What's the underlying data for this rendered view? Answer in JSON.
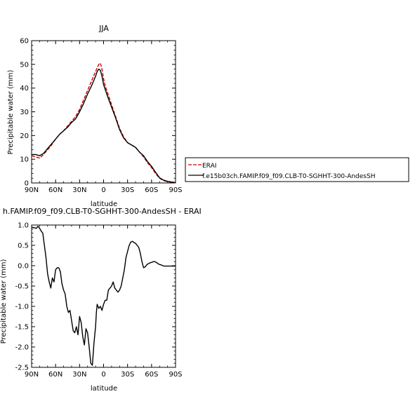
{
  "chart_data": [
    {
      "type": "line",
      "title": "JJA",
      "xlabel": "latitude",
      "ylabel": "Precipitable water (mm)",
      "xticks": [
        "90N",
        "60N",
        "30N",
        "0",
        "30S",
        "60S",
        "90S"
      ],
      "xlim": [
        90,
        -90
      ],
      "ylim": [
        0,
        60
      ],
      "yticks": [
        0,
        10,
        20,
        30,
        40,
        50,
        60
      ],
      "legend": "right",
      "series": [
        {
          "name": "ERAI",
          "color": "#cc0000",
          "dash": "dashed",
          "x": [
            90,
            85,
            80,
            75,
            70,
            65,
            60,
            55,
            50,
            45,
            40,
            35,
            30,
            25,
            20,
            15,
            10,
            8,
            6,
            4,
            2,
            0,
            -2,
            -5,
            -10,
            -15,
            -20,
            -25,
            -30,
            -35,
            -40,
            -45,
            -50,
            -55,
            -60,
            -65,
            -70,
            -75,
            -80,
            -85,
            -90
          ],
          "y": [
            11.5,
            11,
            10.5,
            12,
            14,
            16,
            18.5,
            20.5,
            22,
            24,
            26,
            28,
            31,
            35,
            39,
            43,
            47,
            48.5,
            50,
            50.5,
            48,
            44,
            41,
            38,
            33,
            28,
            23,
            19.5,
            17,
            16,
            15,
            13,
            11,
            8.5,
            6.5,
            4,
            2,
            1,
            0.5,
            0.3,
            0.1
          ]
        },
        {
          "name": "f.e15b03ch.FAMIP.f09_f09.CLB-T0-SGHHT-300-AndesSH",
          "color": "#000000",
          "dash": "solid",
          "x": [
            90,
            85,
            80,
            75,
            70,
            65,
            60,
            55,
            50,
            45,
            40,
            35,
            30,
            25,
            20,
            15,
            10,
            8,
            6,
            4,
            2,
            0,
            -2,
            -5,
            -10,
            -15,
            -20,
            -25,
            -30,
            -35,
            -40,
            -45,
            -50,
            -55,
            -60,
            -65,
            -70,
            -75,
            -80,
            -85,
            -90
          ],
          "y": [
            12,
            12,
            11.5,
            12.5,
            14.5,
            16.5,
            18.5,
            20.5,
            22,
            23.5,
            25.5,
            27,
            30,
            33.5,
            37.5,
            41,
            45,
            47,
            48,
            47.5,
            45,
            41.5,
            39.5,
            36.5,
            32,
            27.5,
            22.5,
            19,
            17,
            16,
            15,
            13,
            11.5,
            9,
            7,
            4.5,
            2.2,
            1.2,
            0.7,
            0.4,
            0.2
          ]
        }
      ]
    },
    {
      "type": "line",
      "title": "h.FAMIP.f09_f09.CLB-T0-SGHHT-300-AndesSH - ERAI",
      "xlabel": "latitude",
      "ylabel": "Precipitable water (mm)",
      "xticks": [
        "90N",
        "60N",
        "30N",
        "0",
        "30S",
        "60S",
        "90S"
      ],
      "xlim": [
        90,
        -90
      ],
      "ylim": [
        -2.5,
        1.0
      ],
      "yticks": [
        "1.0",
        "0.5",
        "0.0",
        "-0.5",
        "-1.0",
        "-1.5",
        "-2.0",
        "-2.5"
      ],
      "series": [
        {
          "color": "#000000",
          "x": [
            90,
            86,
            84,
            82,
            80,
            78,
            76,
            74,
            72,
            70,
            68,
            66,
            64,
            62,
            60,
            58,
            56,
            54,
            52,
            50,
            48,
            46,
            44,
            42,
            40,
            38,
            36,
            34,
            32,
            30,
            28,
            26,
            24,
            22,
            20,
            18,
            16,
            14,
            12,
            10,
            9,
            8,
            6,
            4,
            2,
            0,
            -2,
            -4,
            -6,
            -8,
            -10,
            -12,
            -14,
            -16,
            -18,
            -20,
            -22,
            -24,
            -26,
            -28,
            -30,
            -32,
            -34,
            -36,
            -38,
            -40,
            -42,
            -44,
            -46,
            -48,
            -50,
            -52,
            -54,
            -56,
            -58,
            -60,
            -62,
            -64,
            -66,
            -68,
            -70,
            -72,
            -74,
            -76,
            -78,
            -80,
            -82,
            -84,
            -86,
            -88,
            -90
          ],
          "y": [
            0.95,
            0.93,
            0.92,
            0.97,
            0.92,
            0.85,
            0.8,
            0.5,
            0.2,
            -0.2,
            -0.4,
            -0.55,
            -0.3,
            -0.4,
            -0.1,
            -0.05,
            -0.05,
            -0.15,
            -0.45,
            -0.6,
            -0.7,
            -1.0,
            -1.15,
            -1.1,
            -1.35,
            -1.6,
            -1.65,
            -1.5,
            -1.7,
            -1.25,
            -1.4,
            -1.75,
            -1.95,
            -1.55,
            -1.65,
            -2.0,
            -2.4,
            -2.45,
            -1.9,
            -1.5,
            -1.15,
            -0.95,
            -1.05,
            -1.0,
            -1.1,
            -0.95,
            -0.85,
            -0.85,
            -0.6,
            -0.55,
            -0.5,
            -0.4,
            -0.55,
            -0.6,
            -0.65,
            -0.6,
            -0.5,
            -0.3,
            -0.1,
            0.2,
            0.35,
            0.5,
            0.58,
            0.6,
            0.57,
            0.55,
            0.5,
            0.45,
            0.3,
            0.1,
            -0.05,
            -0.03,
            0.02,
            0.05,
            0.07,
            0.08,
            0.1,
            0.1,
            0.08,
            0.05,
            0.03,
            0.02,
            0.0,
            -0.01,
            -0.01,
            -0.01,
            -0.01,
            -0.01,
            -0.01,
            -0.01,
            -0.01
          ]
        }
      ]
    }
  ]
}
